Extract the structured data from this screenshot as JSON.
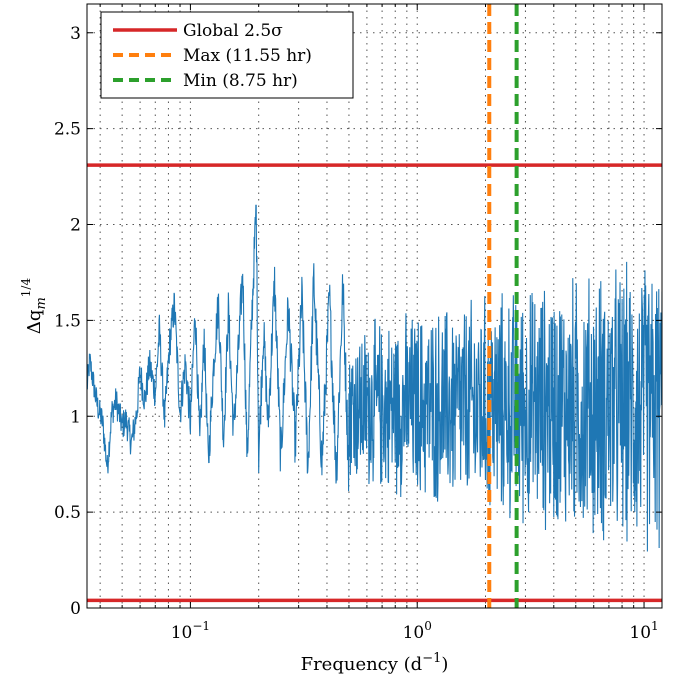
{
  "chart_data": {
    "type": "line",
    "xlabel": {
      "base": "Frequency (d",
      "sup": "−1",
      "suffix": ")"
    },
    "ylabel": {
      "base": "Δq",
      "sub": "m",
      "sup": "1/4"
    },
    "xscale": "log",
    "xlim": [
      0.035,
      12
    ],
    "ylim": [
      0,
      3.15
    ],
    "grid": true,
    "legend_position": "top-left",
    "x_ticks": [
      {
        "value": 0.1,
        "base": "10",
        "exp": "−1"
      },
      {
        "value": 1,
        "base": "10",
        "exp": "0"
      },
      {
        "value": 10,
        "base": "10",
        "exp": "1"
      }
    ],
    "y_ticks": [
      {
        "value": 0,
        "label": "0"
      },
      {
        "value": 0.5,
        "label": "0.5"
      },
      {
        "value": 1,
        "label": "1"
      },
      {
        "value": 1.5,
        "label": "1.5"
      },
      {
        "value": 2,
        "label": "2"
      },
      {
        "value": 2.5,
        "label": "2.5"
      },
      {
        "value": 3,
        "label": "3"
      }
    ],
    "series": [
      {
        "color": "#1f77b4",
        "points": [
          [
            0.035,
            1.15
          ],
          [
            0.036,
            1.29
          ],
          [
            0.038,
            1.12
          ],
          [
            0.039,
            1.05
          ],
          [
            0.041,
            0.97
          ],
          [
            0.043,
            0.73
          ],
          [
            0.045,
            1.02
          ],
          [
            0.047,
            1.08
          ],
          [
            0.05,
            0.95
          ],
          [
            0.052,
            0.98
          ],
          [
            0.055,
            0.86
          ],
          [
            0.058,
            1.02
          ],
          [
            0.06,
            1.23
          ],
          [
            0.063,
            1.08
          ],
          [
            0.066,
            1.27
          ],
          [
            0.07,
            1.12
          ],
          [
            0.073,
            1.45
          ],
          [
            0.077,
            0.98
          ],
          [
            0.081,
            1.38
          ],
          [
            0.085,
            1.58
          ],
          [
            0.09,
            1.02
          ],
          [
            0.095,
            1.28
          ],
          [
            0.1,
            0.97
          ],
          [
            0.105,
            1.55
          ],
          [
            0.11,
            0.85
          ],
          [
            0.115,
            1.42
          ],
          [
            0.12,
            0.75
          ],
          [
            0.127,
            1.3
          ],
          [
            0.133,
            1.6
          ],
          [
            0.14,
            0.88
          ],
          [
            0.147,
            1.55
          ],
          [
            0.155,
            0.92
          ],
          [
            0.163,
            1.35
          ],
          [
            0.17,
            1.75
          ],
          [
            0.178,
            0.78
          ],
          [
            0.187,
            1.55
          ],
          [
            0.195,
            2.1
          ],
          [
            0.2,
            0.8
          ],
          [
            0.21,
            1.45
          ],
          [
            0.22,
            0.95
          ],
          [
            0.235,
            1.7
          ],
          [
            0.25,
            0.78
          ],
          [
            0.27,
            1.58
          ],
          [
            0.29,
            0.85
          ],
          [
            0.31,
            1.62
          ],
          [
            0.33,
            0.72
          ],
          [
            0.35,
            1.72
          ],
          [
            0.38,
            0.75
          ],
          [
            0.41,
            1.62
          ],
          [
            0.44,
            0.7
          ],
          [
            0.47,
            1.68
          ],
          [
            0.5,
            0.68
          ],
          [
            0.55,
            1.75
          ],
          [
            0.6,
            0.65
          ],
          [
            0.65,
            1.8
          ],
          [
            0.7,
            0.62
          ],
          [
            0.75,
            1.78
          ],
          [
            0.8,
            0.58
          ],
          [
            0.87,
            1.85
          ],
          [
            0.94,
            0.55
          ],
          [
            1.0,
            1.82
          ],
          [
            1.1,
            0.52
          ],
          [
            1.2,
            1.88
          ],
          [
            1.3,
            0.5
          ],
          [
            1.4,
            1.9
          ],
          [
            1.5,
            0.48
          ],
          [
            1.65,
            1.85
          ],
          [
            1.8,
            0.45
          ],
          [
            1.95,
            1.95
          ],
          [
            2.1,
            0.44
          ],
          [
            2.3,
            1.92
          ],
          [
            2.5,
            0.42
          ],
          [
            2.7,
            2.0
          ],
          [
            3.0,
            0.4
          ],
          [
            3.3,
            1.95
          ],
          [
            3.6,
            0.38
          ],
          [
            4.0,
            1.92
          ],
          [
            4.4,
            0.35
          ],
          [
            4.8,
            1.95
          ],
          [
            5.3,
            0.33
          ],
          [
            5.8,
            1.9
          ],
          [
            6.4,
            0.32
          ],
          [
            7.0,
            1.93
          ],
          [
            7.7,
            0.3
          ],
          [
            8.5,
            1.88
          ],
          [
            9.3,
            0.28
          ],
          [
            10.2,
            1.92
          ],
          [
            11.0,
            0.3
          ],
          [
            12.0,
            1.65
          ]
        ]
      }
    ],
    "hlines": [
      {
        "label": "Global 2.5σ",
        "y": 2.31,
        "color": "#d62728",
        "style": "solid"
      },
      {
        "y": 0.04,
        "color": "#d62728",
        "style": "solid"
      }
    ],
    "vlines": [
      {
        "label": "Max (11.55 hr)",
        "x": 2.078,
        "color": "#ff7f0e",
        "style": "dashed"
      },
      {
        "label": "Min (8.75 hr)",
        "x": 2.743,
        "color": "#2ca02c",
        "style": "dashed"
      }
    ]
  }
}
